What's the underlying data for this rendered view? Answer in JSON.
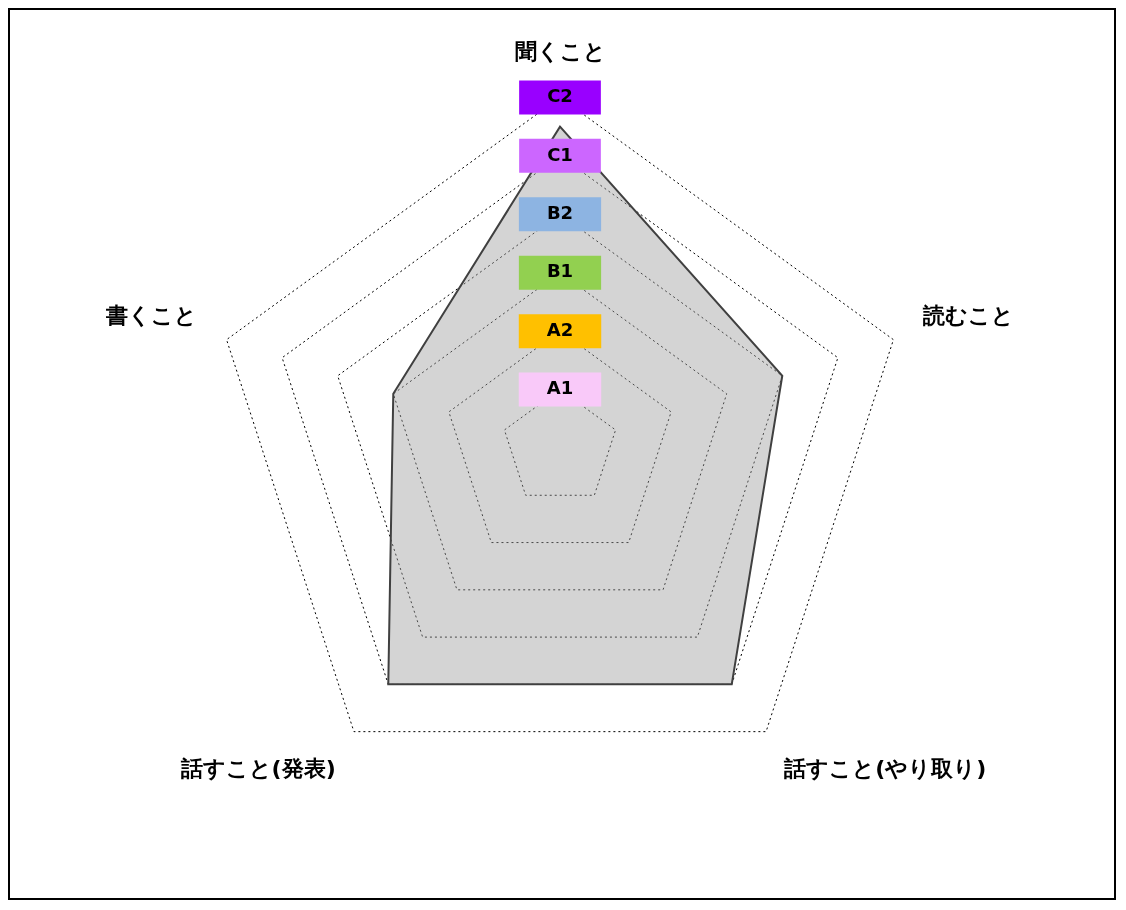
{
  "chart_data": {
    "type": "radar",
    "categories": [
      "聞くこと",
      "読むこと",
      "話すこと(やり取り)",
      "話すこと(発表)",
      "書くこと"
    ],
    "series": [
      {
        "color": "#404040",
        "values": [
          5.5,
          4,
          5,
          5,
          3
        ]
      }
    ],
    "ylim": [
      0,
      6
    ],
    "yticks": [
      {
        "value": 1,
        "label": "A1"
      },
      {
        "value": 2,
        "label": "A2"
      },
      {
        "value": 3,
        "label": "B1"
      },
      {
        "value": 4,
        "label": "B2"
      },
      {
        "value": 5,
        "label": "C1"
      },
      {
        "value": 6,
        "label": "C2"
      }
    ],
    "grid": true,
    "legend": false,
    "marker": "none"
  }
}
